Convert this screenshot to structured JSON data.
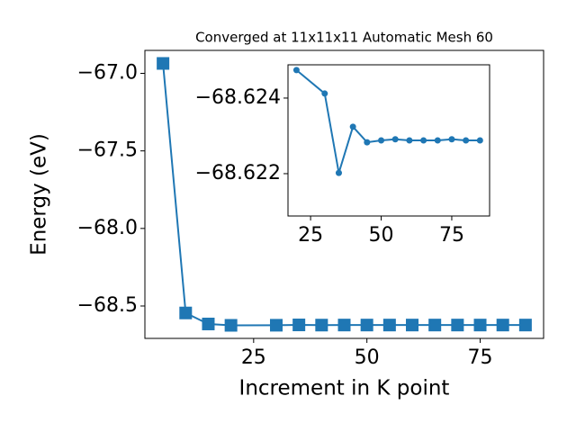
{
  "chart_data": [
    {
      "type": "line",
      "title": "Converged at 11x11x11 Automatic Mesh 60",
      "x_label": "Increment in K point",
      "y_label": "Energy (eV)",
      "x": [
        5,
        10,
        15,
        20,
        30,
        35,
        40,
        45,
        50,
        55,
        60,
        65,
        70,
        75,
        80,
        85
      ],
      "series": [
        {
          "color": "#1f77b4",
          "marker": "square",
          "values": [
            -66.936,
            -68.545,
            -68.616,
            -68.62474,
            -68.62412,
            -68.62202,
            -68.62324,
            -68.62283,
            -68.62288,
            -68.62291,
            -68.62288,
            -68.62288,
            -68.62288,
            -68.62291,
            -68.62288,
            -68.62288
          ]
        }
      ],
      "xlim": [
        1,
        89
      ],
      "xticks": [
        25,
        50,
        75
      ],
      "ylim": [
        -68.709,
        -66.852
      ],
      "yticks": [
        {
          "value": -68.5,
          "label": "−68.5"
        },
        {
          "value": -68.0,
          "label": "−68.0"
        },
        {
          "value": -67.5,
          "label": "−67.5"
        },
        {
          "value": -67.0,
          "label": "−67.0"
        }
      ]
    },
    {
      "type": "line",
      "x": [
        20,
        30,
        35,
        40,
        45,
        50,
        55,
        60,
        65,
        70,
        75,
        80,
        85
      ],
      "series": [
        {
          "color": "#1f77b4",
          "marker": "circle",
          "values": [
            -68.62474,
            -68.62412,
            -68.62202,
            -68.62324,
            -68.62283,
            -68.62288,
            -68.62291,
            -68.62288,
            -68.62288,
            -68.62288,
            -68.62291,
            -68.62288,
            -68.62288
          ]
        }
      ],
      "xlim": [
        17,
        88.4
      ],
      "xticks": [
        25,
        50,
        75
      ],
      "ylim": [
        -68.62088,
        -68.62488
      ],
      "yticks": [
        {
          "value": -68.624,
          "label": "−68.624"
        },
        {
          "value": -68.622,
          "label": "−68.622"
        }
      ]
    }
  ]
}
